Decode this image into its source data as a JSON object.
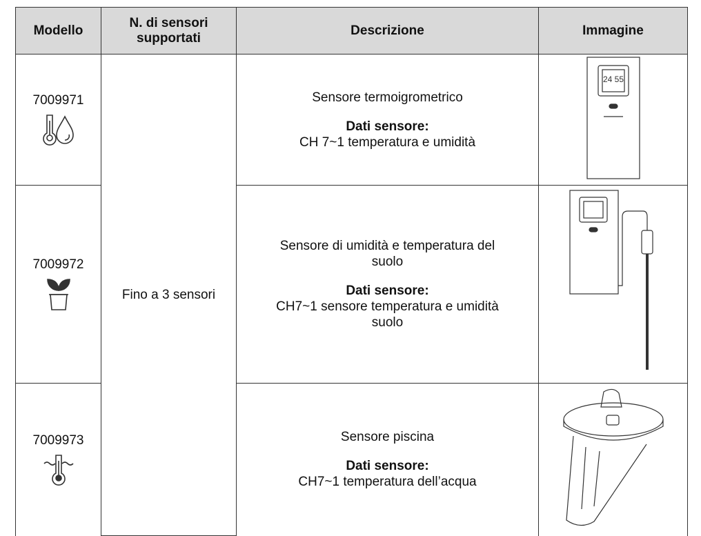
{
  "table": {
    "headers": [
      "Modello",
      "N. di sensori supportati",
      "Descrizione",
      "Immagine"
    ],
    "sensors": "Fino a 3 sensori",
    "rows": [
      {
        "model": "7009971",
        "description": "Sensore termoigrometrico",
        "data_label": "Dati sensore:",
        "data_text": "CH 7~1 temperatura e umidità"
      },
      {
        "model": "7009972",
        "description": "Sensore di umidità e temperatura del suolo",
        "data_label": "Dati sensore:",
        "data_text": "CH7~1 sensore temperatura e umidità suolo"
      },
      {
        "model": "7009973",
        "description": "Sensore piscina",
        "data_label": "Dati sensore:",
        "data_text": "CH7~1 temperatura dell’acqua"
      }
    ]
  }
}
